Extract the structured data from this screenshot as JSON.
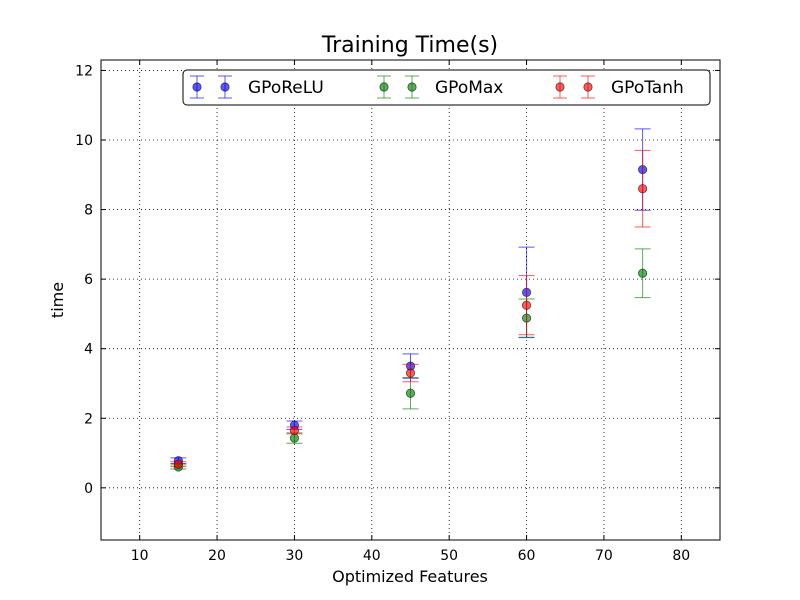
{
  "chart_data": {
    "type": "scatter",
    "title": "Training Time(s)",
    "xlabel": "Optimized Features",
    "ylabel": "time",
    "xlim": [
      5,
      85
    ],
    "ylim": [
      -1.5,
      12.3
    ],
    "xticks": [
      10,
      20,
      30,
      40,
      50,
      60,
      70,
      80
    ],
    "yticks": [
      0,
      2,
      4,
      6,
      8,
      10,
      12
    ],
    "xtick_labels": [
      "10",
      "20",
      "30",
      "40",
      "50",
      "60",
      "70",
      "80"
    ],
    "ytick_labels": [
      "0",
      "2",
      "4",
      "6",
      "8",
      "10",
      "12"
    ],
    "grid": true,
    "legend_position": "top-right",
    "error_bars": true,
    "series": [
      {
        "name": "GPoReLU",
        "color": "#0000ff",
        "x": [
          15,
          30,
          45,
          60,
          75
        ],
        "y": [
          0.78,
          1.8,
          3.5,
          5.62,
          9.15
        ],
        "yerr": [
          0.08,
          0.12,
          0.35,
          1.3,
          1.17
        ]
      },
      {
        "name": "GPoMax",
        "color": "#008000",
        "x": [
          15,
          30,
          45,
          60,
          75
        ],
        "y": [
          0.6,
          1.43,
          2.72,
          4.88,
          6.17
        ],
        "yerr": [
          0.06,
          0.15,
          0.45,
          0.55,
          0.7
        ]
      },
      {
        "name": "GPoTanh",
        "color": "#ff0000",
        "x": [
          15,
          30,
          45,
          60,
          75
        ],
        "y": [
          0.68,
          1.65,
          3.3,
          5.25,
          8.6
        ],
        "yerr": [
          0.07,
          0.1,
          0.25,
          0.85,
          1.1
        ]
      }
    ]
  }
}
